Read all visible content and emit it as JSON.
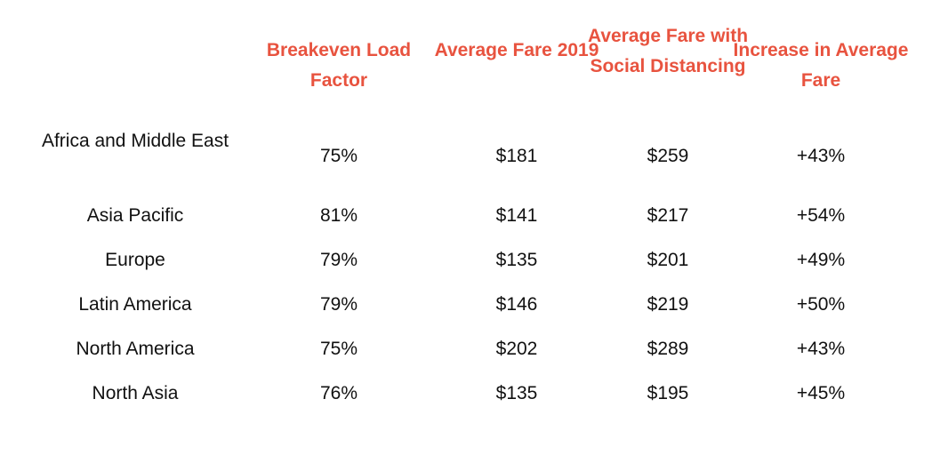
{
  "chart_data": {
    "type": "table",
    "columns": [
      "Breakeven Load Factor",
      "Average Fare 2019",
      "Average Fare with Social Distancing",
      "Increase in Average Fare"
    ],
    "rows": [
      {
        "region": "Africa and Middle East",
        "values": [
          "75%",
          "$181",
          "$259",
          "+43%"
        ]
      },
      {
        "region": "Asia Pacific",
        "values": [
          "81%",
          "$141",
          "$217",
          "+54%"
        ]
      },
      {
        "region": "Europe",
        "values": [
          "79%",
          "$135",
          "$201",
          "+49%"
        ]
      },
      {
        "region": "Latin America",
        "values": [
          "79%",
          "$146",
          "$219",
          "+50%"
        ]
      },
      {
        "region": "North America",
        "values": [
          "75%",
          "$202",
          "$289",
          "+43%"
        ]
      },
      {
        "region": "North Asia",
        "values": [
          "76%",
          "$135",
          "$195",
          "+45%"
        ]
      }
    ],
    "header_color": "#e8533f"
  }
}
